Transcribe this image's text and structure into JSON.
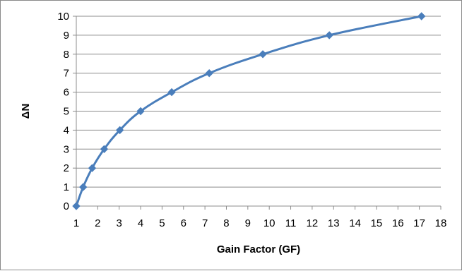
{
  "chart_data": {
    "type": "line",
    "title": "",
    "xlabel": "Gain Factor (GF)",
    "ylabel": "ΔN",
    "xlim": [
      1,
      18
    ],
    "ylim": [
      0,
      10
    ],
    "x_ticks": [
      1,
      2,
      3,
      4,
      5,
      6,
      7,
      8,
      9,
      10,
      11,
      12,
      13,
      14,
      15,
      16,
      17,
      18
    ],
    "y_ticks": [
      0,
      1,
      2,
      3,
      4,
      5,
      6,
      7,
      8,
      9,
      10
    ],
    "grid": "horizontal",
    "legend": "none",
    "series": [
      {
        "color": "#4a7ebb",
        "marker": "diamond",
        "smooth": true,
        "points": [
          {
            "x": 1.0,
            "y": 0
          },
          {
            "x": 1.32,
            "y": 1
          },
          {
            "x": 1.74,
            "y": 2
          },
          {
            "x": 2.3,
            "y": 3
          },
          {
            "x": 3.03,
            "y": 4
          },
          {
            "x": 4.0,
            "y": 5
          },
          {
            "x": 5.45,
            "y": 6
          },
          {
            "x": 7.2,
            "y": 7
          },
          {
            "x": 9.7,
            "y": 8
          },
          {
            "x": 12.8,
            "y": 9
          },
          {
            "x": 17.1,
            "y": 10
          }
        ]
      }
    ]
  }
}
